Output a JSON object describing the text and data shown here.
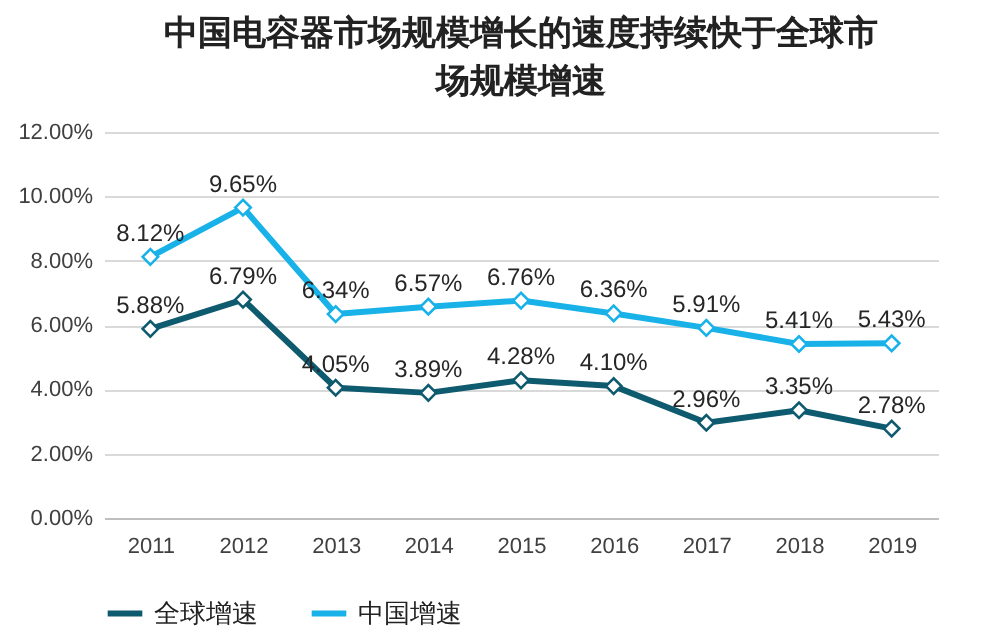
{
  "chart_data": {
    "type": "line",
    "title": "中国电容器市场规模增长的速度持续快于全球市场规模增速",
    "categories": [
      "2011",
      "2012",
      "2013",
      "2014",
      "2015",
      "2016",
      "2017",
      "2018",
      "2019"
    ],
    "series": [
      {
        "name": "全球增速",
        "color": "#0e5a6e",
        "values": [
          5.88,
          6.79,
          4.05,
          3.89,
          4.28,
          4.1,
          2.96,
          3.35,
          2.78
        ],
        "value_labels": [
          "5.88%",
          "6.79%",
          "4.05%",
          "3.89%",
          "4.28%",
          "4.10%",
          "2.96%",
          "3.35%",
          "2.78%"
        ]
      },
      {
        "name": "中国增速",
        "color": "#19b2e8",
        "values": [
          8.12,
          9.65,
          6.34,
          6.57,
          6.76,
          6.36,
          5.91,
          5.41,
          5.43
        ],
        "value_labels": [
          "8.12%",
          "9.65%",
          "6.34%",
          "6.57%",
          "6.76%",
          "6.36%",
          "5.91%",
          "5.41%",
          "5.43%"
        ]
      }
    ],
    "ylim": [
      0,
      12
    ],
    "yticks": [
      {
        "value": 0,
        "label": "0.00%"
      },
      {
        "value": 2,
        "label": "2.00%"
      },
      {
        "value": 4,
        "label": "4.00%"
      },
      {
        "value": 6,
        "label": "6.00%"
      },
      {
        "value": 8,
        "label": "8.00%"
      },
      {
        "value": 10,
        "label": "10.00%"
      },
      {
        "value": 12,
        "label": "12.00%"
      }
    ],
    "grid": "y",
    "legend": "bottom",
    "marker": "diamond",
    "line_style": "solid"
  }
}
